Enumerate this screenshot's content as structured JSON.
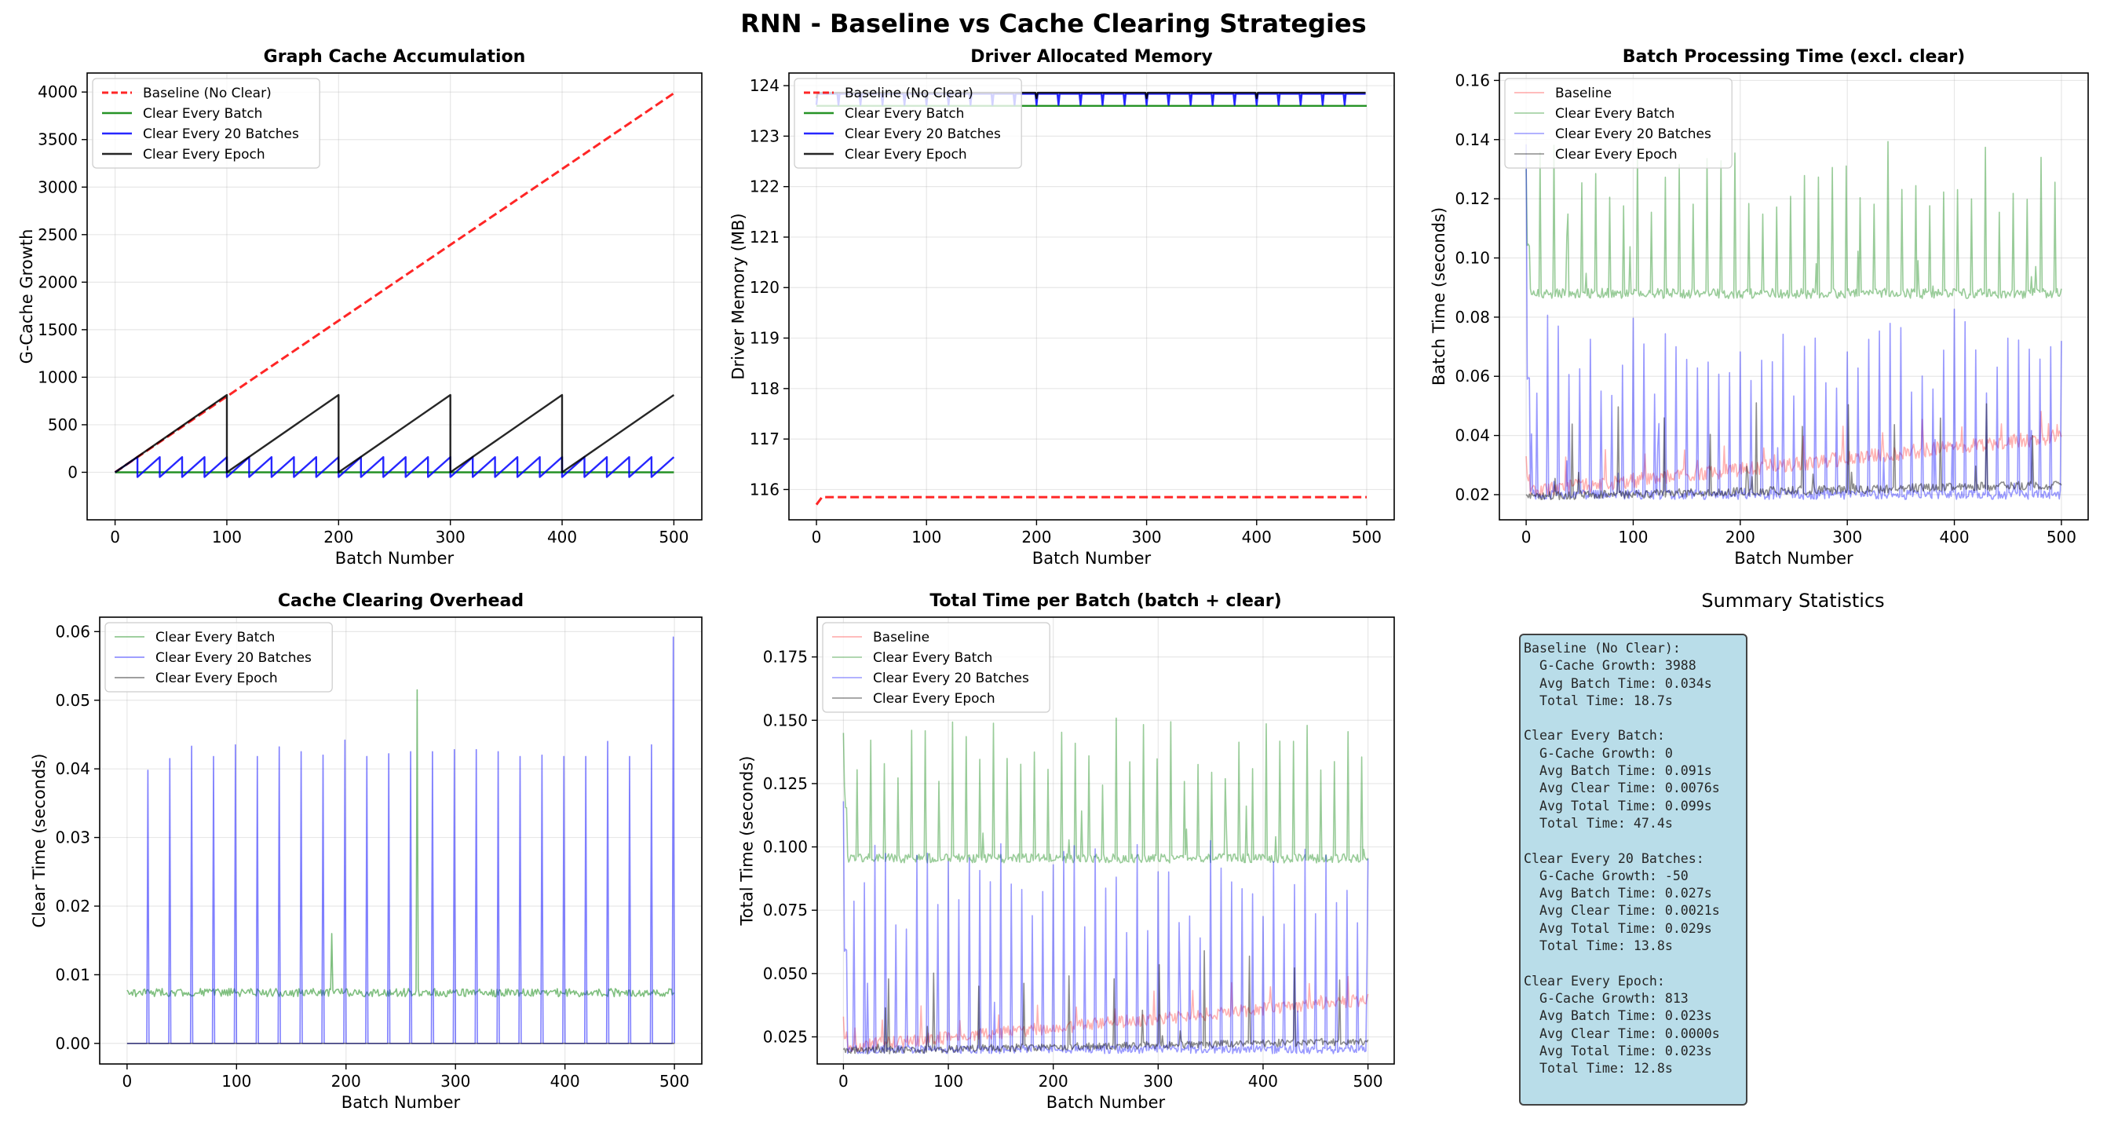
{
  "suptitle": "RNN - Baseline vs Cache Clearing Strategies",
  "colors": {
    "Baseline (No Clear)": "#ff0000",
    "Baseline": "#ff0000",
    "Clear Every Batch": "#008000",
    "Clear Every 20 Batches": "#0000ff",
    "Clear Every Epoch": "#000000"
  },
  "chart_data": [
    {
      "id": "p1",
      "type": "line",
      "title": "Graph Cache Accumulation",
      "xlabel": "Batch Number",
      "ylabel": "G-Cache Growth",
      "xlim": [
        -25,
        525
      ],
      "ylim": [
        -500,
        4200
      ],
      "xticks": [
        "0",
        "100",
        "200",
        "300",
        "400",
        "500"
      ],
      "yticks": [
        "0",
        "500",
        "1000",
        "1500",
        "2000",
        "2500",
        "3000",
        "3500",
        "4000"
      ],
      "legend": "top-left",
      "grid": true,
      "series": [
        {
          "name": "Baseline (No Clear)",
          "kind": "linear",
          "from": [
            0,
            0
          ],
          "to": [
            500,
            3988
          ],
          "dashed": true,
          "alpha": 0.85,
          "width": 3
        },
        {
          "name": "Clear Every Batch",
          "kind": "constant",
          "value": 0,
          "alpha": 0.85,
          "width": 2.4
        },
        {
          "name": "Clear Every 20 Batches",
          "kind": "saw",
          "period": 20,
          "peak": 160,
          "low": -50,
          "alpha": 0.85,
          "width": 2.4
        },
        {
          "name": "Clear Every Epoch",
          "kind": "saw",
          "period": 100,
          "peak": 813,
          "low": 0,
          "alpha": 0.85,
          "width": 2.4
        }
      ]
    },
    {
      "id": "p2",
      "type": "line",
      "title": "Driver Allocated Memory",
      "xlabel": "Batch Number",
      "ylabel": "Driver Memory (MB)",
      "xlim": [
        -25,
        525
      ],
      "ylim": [
        115.4,
        124.25
      ],
      "xticks": [
        "0",
        "100",
        "200",
        "300",
        "400",
        "500"
      ],
      "yticks": [
        "116",
        "117",
        "118",
        "119",
        "120",
        "121",
        "122",
        "123",
        "124"
      ],
      "legend": "top-left",
      "grid": true,
      "series": [
        {
          "name": "Baseline (No Clear)",
          "kind": "baseline-mem",
          "start": 115.7,
          "value": 115.85,
          "dashed": true,
          "alpha": 0.85,
          "width": 3
        },
        {
          "name": "Clear Every Batch",
          "kind": "constant",
          "value": 123.6,
          "alpha": 0.85,
          "width": 2.4
        },
        {
          "name": "Clear Every 20 Batches",
          "kind": "mem-saw",
          "period": 20,
          "high": 123.84,
          "low": 123.62,
          "alpha": 0.85,
          "width": 2.4
        },
        {
          "name": "Clear Every Epoch",
          "kind": "mem-saw",
          "period": 100,
          "high": 123.86,
          "low": 123.75,
          "alpha": 0.85,
          "width": 2.4
        }
      ]
    },
    {
      "id": "p3",
      "type": "line",
      "title": "Batch Processing Time (excl. clear)",
      "xlabel": "Batch Number",
      "ylabel": "Batch Time (seconds)",
      "xlim": [
        -25,
        525
      ],
      "ylim": [
        0.0115,
        0.1625
      ],
      "xticks": [
        "0",
        "100",
        "200",
        "300",
        "400",
        "500"
      ],
      "yticks": [
        "0.02",
        "0.04",
        "0.06",
        "0.08",
        "0.10",
        "0.12",
        "0.14",
        "0.16"
      ],
      "legend": "top-left",
      "grid": true,
      "series": [
        {
          "name": "Baseline",
          "kind": "noisy",
          "base": 0.021,
          "slope": 3.75e-05,
          "noise": 0.0025,
          "spikes": 0.012,
          "spike_every": 37,
          "start": 0.033,
          "alpha": 0.3,
          "width": 1.6
        },
        {
          "name": "Clear Every Batch",
          "kind": "noisy",
          "base": 0.088,
          "slope": 0,
          "noise": 0.0017,
          "spikes": 0.05,
          "spike_every": 13,
          "start": 0.13,
          "alpha": 0.4,
          "width": 1.6
        },
        {
          "name": "Clear Every 20 Batches",
          "kind": "noisy",
          "base": 0.02,
          "slope": 0,
          "noise": 0.0016,
          "spikes": 0.062,
          "spike_every": 10,
          "start": 0.117,
          "alpha": 0.4,
          "width": 1.6
        },
        {
          "name": "Clear Every Epoch",
          "kind": "noisy",
          "base": 0.0195,
          "slope": 7.5e-06,
          "noise": 0.0015,
          "spikes": 0.03,
          "spike_every": 43,
          "start": 0.02,
          "alpha": 0.45,
          "width": 1.6
        }
      ]
    },
    {
      "id": "p4",
      "type": "line",
      "title": "Cache Clearing Overhead",
      "xlabel": "Batch Number",
      "ylabel": "Clear Time (seconds)",
      "xlim": [
        -25,
        525
      ],
      "ylim": [
        -0.003,
        0.0621
      ],
      "xticks": [
        "0",
        "100",
        "200",
        "300",
        "400",
        "500"
      ],
      "yticks": [
        "0.00",
        "0.01",
        "0.02",
        "0.03",
        "0.04",
        "0.05",
        "0.06"
      ],
      "legend": "top-left",
      "grid": true,
      "series": [
        {
          "name": "Clear Every Batch",
          "kind": "clear-noise",
          "base": 0.0074,
          "noise": 0.0006,
          "special": [
            [
              187,
              0.016
            ],
            [
              265,
              0.0515
            ]
          ],
          "alpha": 0.5,
          "width": 1.6
        },
        {
          "name": "Clear Every 20 Batches",
          "kind": "clear-spikes",
          "period": 20,
          "heights": [
            0.0398,
            0.0415,
            0.0433,
            0.0418,
            0.0435,
            0.0418,
            0.0432,
            0.0425,
            0.042,
            0.0442,
            0.0418,
            0.0422,
            0.0425,
            0.0425,
            0.0428,
            0.0428,
            0.0425,
            0.0418,
            0.042,
            0.0418,
            0.0418,
            0.044,
            0.0418,
            0.0435,
            0.0592
          ],
          "alpha": 0.5,
          "width": 1.6
        },
        {
          "name": "Clear Every Epoch",
          "kind": "constant",
          "value": 0,
          "alpha": 0.5,
          "width": 1.6
        }
      ]
    },
    {
      "id": "p5",
      "type": "line",
      "title": "Total Time per Batch (batch + clear)",
      "xlabel": "Batch Number",
      "ylabel": "Total Time (seconds)",
      "xlim": [
        -25,
        525
      ],
      "ylim": [
        0.0143,
        0.1907
      ],
      "xticks": [
        "0",
        "100",
        "200",
        "300",
        "400",
        "500"
      ],
      "yticks": [
        "0.025",
        "0.050",
        "0.075",
        "0.100",
        "0.125",
        "0.150",
        "0.175"
      ],
      "legend": "top-left",
      "grid": true,
      "series": [
        {
          "name": "Baseline",
          "kind": "noisy",
          "base": 0.021,
          "slope": 3.75e-05,
          "noise": 0.0025,
          "spikes": 0.012,
          "spike_every": 37,
          "start": 0.033,
          "alpha": 0.3,
          "width": 1.6
        },
        {
          "name": "Clear Every Batch",
          "kind": "noisy",
          "base": 0.0955,
          "slope": 0,
          "noise": 0.0018,
          "spikes": 0.055,
          "spike_every": 13,
          "start": 0.145,
          "alpha": 0.4,
          "width": 1.6
        },
        {
          "name": "Clear Every 20 Batches",
          "kind": "noisy",
          "base": 0.02,
          "slope": 0,
          "noise": 0.0016,
          "spikes": 0.082,
          "spike_every": 10,
          "start": 0.118,
          "alpha": 0.4,
          "width": 1.6
        },
        {
          "name": "Clear Every Epoch",
          "kind": "noisy",
          "base": 0.0195,
          "slope": 7.5e-06,
          "noise": 0.0015,
          "spikes": 0.04,
          "spike_every": 43,
          "start": 0.02,
          "alpha": 0.45,
          "width": 1.6
        }
      ]
    }
  ],
  "summary": {
    "title": "Summary Statistics",
    "blocks": [
      {
        "lines": [
          "Baseline (No Clear):",
          "  G-Cache Growth: 3988",
          "  Avg Batch Time: 0.034s",
          "  Total Time: 18.7s"
        ]
      },
      {
        "lines": [
          "Clear Every Batch:",
          "  G-Cache Growth: 0",
          "  Avg Batch Time: 0.091s",
          "  Avg Clear Time: 0.0076s",
          "  Avg Total Time: 0.099s",
          "  Total Time: 47.4s"
        ]
      },
      {
        "lines": [
          "Clear Every 20 Batches:",
          "  G-Cache Growth: -50",
          "  Avg Batch Time: 0.027s",
          "  Avg Clear Time: 0.0021s",
          "  Avg Total Time: 0.029s",
          "  Total Time: 13.8s"
        ]
      },
      {
        "lines": [
          "Clear Every Epoch:",
          "  G-Cache Growth: 813",
          "  Avg Batch Time: 0.023s",
          "  Avg Clear Time: 0.0000s",
          "  Avg Total Time: 0.023s",
          "  Total Time: 12.8s"
        ]
      }
    ]
  }
}
